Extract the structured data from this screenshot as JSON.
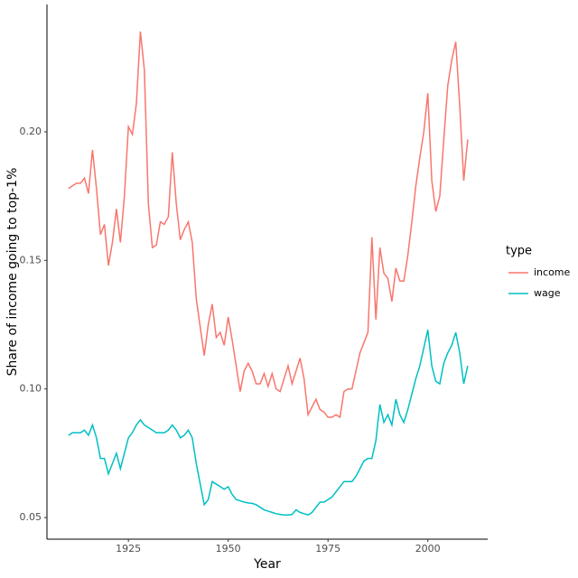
{
  "chart_data": {
    "type": "line",
    "x_label": "Year",
    "y_label": "Share of income going to top-1%",
    "legend_title": "type",
    "legend_position": "right",
    "grid": false,
    "x": [
      1910,
      1911,
      1912,
      1913,
      1914,
      1915,
      1916,
      1917,
      1918,
      1919,
      1920,
      1921,
      1922,
      1923,
      1924,
      1925,
      1926,
      1927,
      1928,
      1929,
      1930,
      1931,
      1932,
      1933,
      1934,
      1935,
      1936,
      1937,
      1938,
      1939,
      1940,
      1941,
      1942,
      1943,
      1944,
      1945,
      1946,
      1947,
      1948,
      1949,
      1950,
      1951,
      1952,
      1953,
      1954,
      1955,
      1956,
      1957,
      1958,
      1959,
      1960,
      1961,
      1962,
      1963,
      1964,
      1965,
      1966,
      1967,
      1968,
      1969,
      1970,
      1971,
      1972,
      1973,
      1974,
      1975,
      1976,
      1977,
      1978,
      1979,
      1980,
      1981,
      1982,
      1983,
      1984,
      1985,
      1986,
      1987,
      1988,
      1989,
      1990,
      1991,
      1992,
      1993,
      1994,
      1995,
      1996,
      1997,
      1998,
      1999,
      2000,
      2001,
      2002,
      2003,
      2004,
      2005,
      2006,
      2007,
      2008,
      2009,
      2010
    ],
    "series": [
      {
        "name": "income",
        "color": "#F8766D",
        "values": [
          0.178,
          0.179,
          0.18,
          0.18,
          0.182,
          0.176,
          0.193,
          0.178,
          0.16,
          0.164,
          0.148,
          0.157,
          0.17,
          0.157,
          0.175,
          0.202,
          0.199,
          0.211,
          0.239,
          0.224,
          0.172,
          0.155,
          0.156,
          0.165,
          0.164,
          0.167,
          0.192,
          0.172,
          0.158,
          0.162,
          0.165,
          0.157,
          0.135,
          0.124,
          0.113,
          0.125,
          0.133,
          0.12,
          0.122,
          0.117,
          0.128,
          0.119,
          0.109,
          0.099,
          0.107,
          0.11,
          0.107,
          0.102,
          0.102,
          0.106,
          0.101,
          0.106,
          0.1,
          0.099,
          0.104,
          0.109,
          0.102,
          0.107,
          0.112,
          0.104,
          0.09,
          0.093,
          0.096,
          0.092,
          0.091,
          0.089,
          0.089,
          0.09,
          0.089,
          0.099,
          0.1,
          0.1,
          0.107,
          0.114,
          0.118,
          0.122,
          0.159,
          0.127,
          0.155,
          0.145,
          0.143,
          0.134,
          0.147,
          0.142,
          0.142,
          0.152,
          0.165,
          0.179,
          0.19,
          0.2,
          0.215,
          0.181,
          0.169,
          0.175,
          0.197,
          0.218,
          0.228,
          0.235,
          0.21,
          0.181,
          0.197
        ]
      },
      {
        "name": "wage",
        "color": "#00BFC4",
        "values": [
          0.082,
          0.083,
          0.083,
          0.083,
          0.084,
          0.082,
          0.086,
          0.081,
          0.073,
          0.073,
          0.067,
          0.071,
          0.075,
          0.069,
          0.075,
          0.081,
          0.083,
          0.086,
          0.088,
          0.086,
          0.085,
          0.084,
          0.083,
          0.083,
          0.083,
          0.084,
          0.086,
          0.084,
          0.081,
          0.082,
          0.084,
          0.081,
          0.071,
          0.063,
          0.055,
          0.057,
          0.064,
          0.063,
          0.062,
          0.061,
          0.062,
          0.059,
          0.057,
          0.0565,
          0.056,
          0.0557,
          0.0555,
          0.055,
          0.054,
          0.053,
          0.0525,
          0.052,
          0.0515,
          0.0512,
          0.051,
          0.051,
          0.0512,
          0.053,
          0.052,
          0.0515,
          0.051,
          0.052,
          0.054,
          0.056,
          0.056,
          0.057,
          0.058,
          0.06,
          0.062,
          0.064,
          0.064,
          0.064,
          0.066,
          0.069,
          0.072,
          0.073,
          0.073,
          0.08,
          0.094,
          0.087,
          0.09,
          0.086,
          0.096,
          0.09,
          0.087,
          0.092,
          0.098,
          0.104,
          0.109,
          0.116,
          0.123,
          0.109,
          0.103,
          0.102,
          0.11,
          0.114,
          0.117,
          0.122,
          0.114,
          0.102,
          0.109
        ]
      }
    ],
    "xlim": [
      1904.6,
      2015
    ],
    "xticks": [
      1925,
      1950,
      1975,
      2000
    ],
    "ylim": [
      0.0416,
      0.2495
    ],
    "yticks": [
      0.05,
      {
        "value": 0.1,
        "label": "0.10"
      },
      {
        "value": 0.15,
        "label": "0.15"
      },
      {
        "value": 0.2,
        "label": "0.20"
      }
    ]
  }
}
